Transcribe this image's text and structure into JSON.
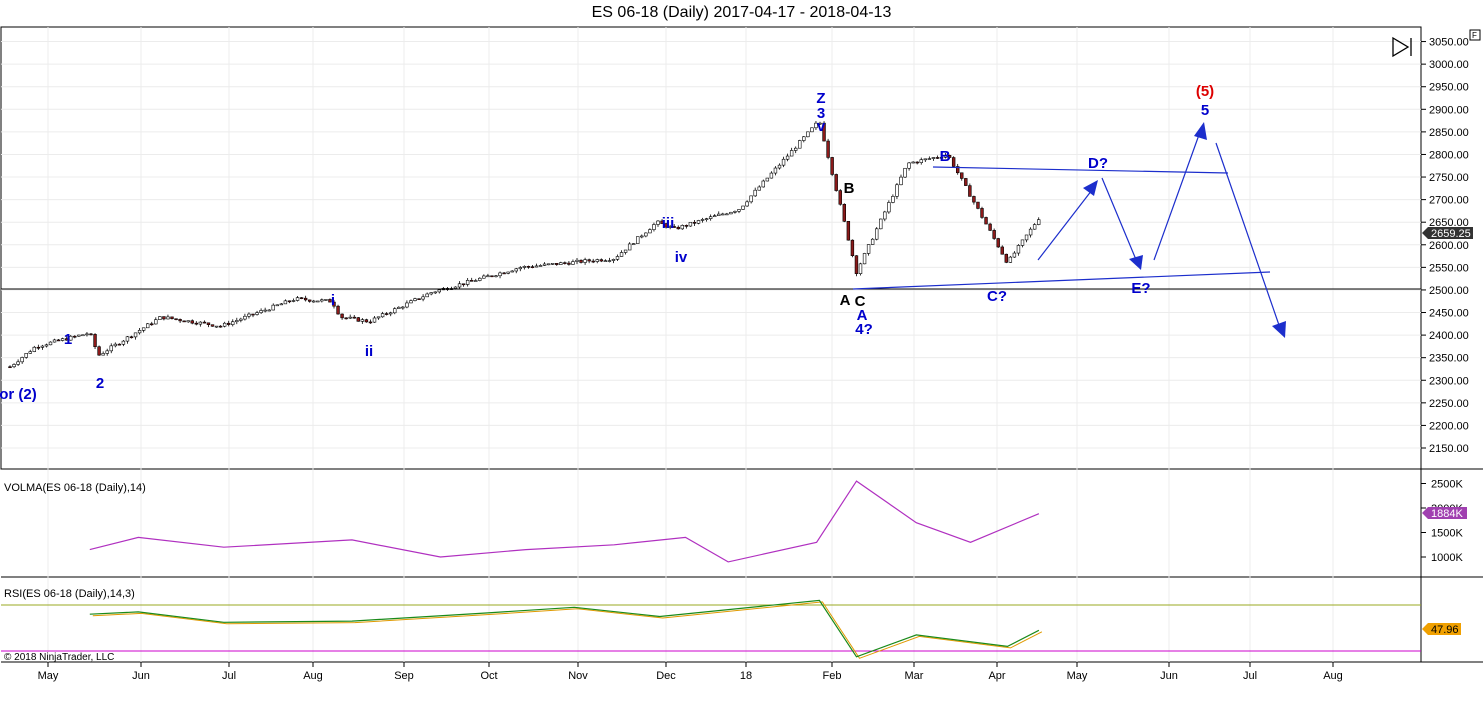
{
  "title": "ES 06-18 (Daily)  2017-04-17 - 2018-04-13",
  "copyright": "© 2018 NinjaTrader, LLC",
  "corner_box": "F",
  "price_ticks": [
    "3050.00",
    "3000.00",
    "2950.00",
    "2900.00",
    "2850.00",
    "2800.00",
    "2750.00",
    "2700.00",
    "2650.00",
    "2600.00",
    "2550.00",
    "2500.00",
    "2450.00",
    "2400.00",
    "2350.00",
    "2300.00",
    "2250.00",
    "2200.00",
    "2150.00"
  ],
  "last_price_tag": "2659.25",
  "volma": {
    "label": "VOLMA(ES 06-18 (Daily),14)",
    "ticks": [
      "2500K",
      "2000K",
      "1500K",
      "1000K"
    ],
    "last_tag": "1884K"
  },
  "rsi": {
    "label": "RSI(ES 06-18 (Daily),14,3)",
    "last_tag": "47.96"
  },
  "months": [
    "May",
    "Jun",
    "Jul",
    "Aug",
    "Sep",
    "Oct",
    "Nov",
    "Dec",
    "18",
    "Feb",
    "Mar",
    "Apr",
    "May",
    "Jun",
    "Jul",
    "Aug"
  ],
  "wave_labels": [
    {
      "text": "or (2)",
      "color": "#0000cc"
    },
    {
      "text": "1",
      "color": "#0000cc"
    },
    {
      "text": "2",
      "color": "#0000cc"
    },
    {
      "text": "i",
      "color": "#0000cc"
    },
    {
      "text": "ii",
      "color": "#0000cc"
    },
    {
      "text": "iii",
      "color": "#0000cc"
    },
    {
      "text": "iv",
      "color": "#0000cc"
    },
    {
      "text": "Z",
      "color": "#0000cc"
    },
    {
      "text": "3",
      "color": "#0000cc"
    },
    {
      "text": "v",
      "color": "#0000cc"
    },
    {
      "text": "B",
      "color": "#000000"
    },
    {
      "text": "A",
      "color": "#000000"
    },
    {
      "text": "C",
      "color": "#000000"
    },
    {
      "text": "A",
      "color": "#0000cc"
    },
    {
      "text": "4?",
      "color": "#0000cc"
    },
    {
      "text": "B",
      "color": "#0000cc"
    },
    {
      "text": "C?",
      "color": "#0000cc"
    },
    {
      "text": "D?",
      "color": "#0000cc"
    },
    {
      "text": "E?",
      "color": "#0000cc"
    },
    {
      "text": "(5)",
      "color": "#dd0000"
    },
    {
      "text": "5",
      "color": "#0000cc"
    }
  ],
  "colors": {
    "wave_blue": "#0000cc",
    "red": "#dd0000",
    "volma": "#b030c0",
    "rsi_green": "#1a8a1a",
    "rsi_signal": "#e09a00",
    "rsi_upper": "#9aa820",
    "rsi_lower": "#cc00cc",
    "tag_dark": "#333333",
    "tag_volma": "#a040b0",
    "tag_rsi": "#f0a000"
  },
  "chart_data": {
    "type": "candlestick",
    "title": "ES 06-18 (Daily)  2017-04-17 - 2018-04-13",
    "ylim": [
      2140,
      3080
    ],
    "close_series": [
      {
        "date": "2017-04-17",
        "value": 2330
      },
      {
        "date": "2017-04-26",
        "value": 2375
      },
      {
        "date": "2017-05-15",
        "value": 2405
      },
      {
        "date": "2017-05-18",
        "value": 2355
      },
      {
        "date": "2017-06-09",
        "value": 2440
      },
      {
        "date": "2017-06-30",
        "value": 2420
      },
      {
        "date": "2017-07-26",
        "value": 2480
      },
      {
        "date": "2017-08-08",
        "value": 2475
      },
      {
        "date": "2017-08-11",
        "value": 2440
      },
      {
        "date": "2017-08-21",
        "value": 2430
      },
      {
        "date": "2017-09-12",
        "value": 2495
      },
      {
        "date": "2017-10-13",
        "value": 2550
      },
      {
        "date": "2017-11-15",
        "value": 2570
      },
      {
        "date": "2017-11-30",
        "value": 2650
      },
      {
        "date": "2017-12-06",
        "value": 2635
      },
      {
        "date": "2017-12-29",
        "value": 2680
      },
      {
        "date": "2018-01-26",
        "value": 2875
      },
      {
        "date": "2018-02-08",
        "value": 2540
      },
      {
        "date": "2018-02-26",
        "value": 2780
      },
      {
        "date": "2018-03-12",
        "value": 2800
      },
      {
        "date": "2018-04-02",
        "value": 2560
      },
      {
        "date": "2018-04-13",
        "value": 2659.25
      }
    ],
    "volma_series": [
      {
        "date": "2017-05-15",
        "value": 1150
      },
      {
        "date": "2017-06-01",
        "value": 1400
      },
      {
        "date": "2017-07-01",
        "value": 1200
      },
      {
        "date": "2017-08-15",
        "value": 1350
      },
      {
        "date": "2017-09-15",
        "value": 1000
      },
      {
        "date": "2017-10-15",
        "value": 1150
      },
      {
        "date": "2017-11-15",
        "value": 1250
      },
      {
        "date": "2017-12-10",
        "value": 1400
      },
      {
        "date": "2017-12-25",
        "value": 900
      },
      {
        "date": "2018-01-25",
        "value": 1300
      },
      {
        "date": "2018-02-08",
        "value": 2550
      },
      {
        "date": "2018-03-01",
        "value": 1700
      },
      {
        "date": "2018-03-20",
        "value": 1300
      },
      {
        "date": "2018-04-13",
        "value": 1884
      }
    ],
    "rsi_series": [
      {
        "date": "2017-05-15",
        "value": 62
      },
      {
        "date": "2017-06-01",
        "value": 64
      },
      {
        "date": "2017-07-01",
        "value": 55
      },
      {
        "date": "2017-08-15",
        "value": 56
      },
      {
        "date": "2017-10-01",
        "value": 63
      },
      {
        "date": "2017-11-01",
        "value": 68
      },
      {
        "date": "2017-12-01",
        "value": 60
      },
      {
        "date": "2018-01-26",
        "value": 74
      },
      {
        "date": "2018-02-08",
        "value": 25
      },
      {
        "date": "2018-03-01",
        "value": 44
      },
      {
        "date": "2018-04-02",
        "value": 34
      },
      {
        "date": "2018-04-13",
        "value": 47.96
      }
    ]
  }
}
